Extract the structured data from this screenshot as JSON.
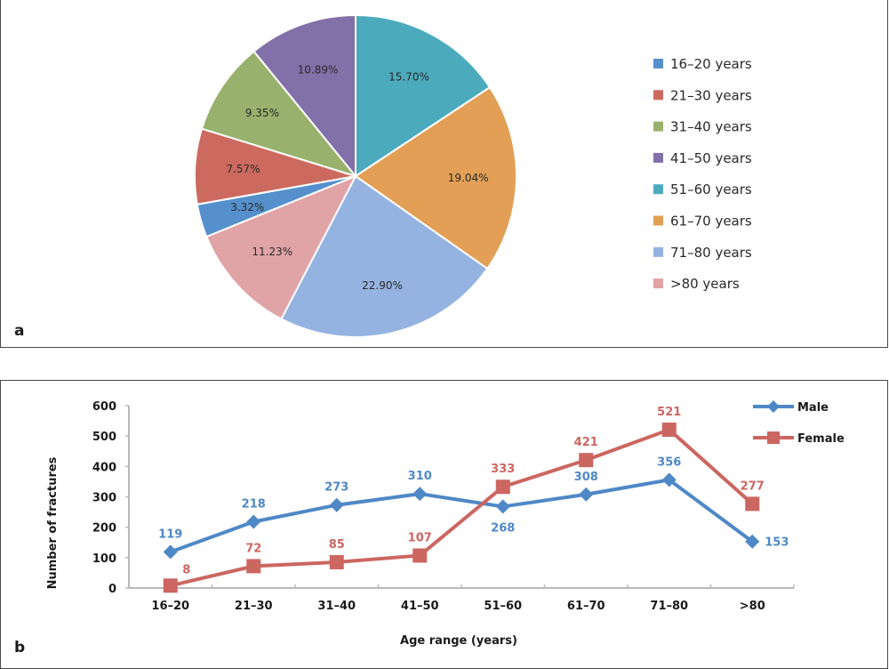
{
  "chart_data": [
    {
      "type": "pie",
      "panel_label": "a",
      "title": "",
      "labels": [
        "16–20 years",
        "21–30 years",
        "31–40 years",
        "41–50 years",
        "51–60 years",
        "61–70 years",
        "71–80 years",
        ">80 years"
      ],
      "values": [
        3.32,
        7.57,
        9.35,
        10.89,
        15.7,
        19.04,
        22.9,
        11.23
      ],
      "value_labels": [
        "3.32%",
        "7.57%",
        "9.35%",
        "10.89%",
        "15.70%",
        "19.04%",
        "22.90%",
        "11.23%"
      ],
      "colors": [
        "#5590cc",
        "#cc6a60",
        "#98b16c",
        "#8270a8",
        "#4babbd",
        "#e29f55",
        "#94b3e0",
        "#e0a3a6"
      ],
      "start_slice_index": 4,
      "legend_position": "right"
    },
    {
      "type": "line",
      "panel_label": "b",
      "title": "",
      "xlabel": "Age range (years)",
      "ylabel": "Number of fractures",
      "categories": [
        "16–20",
        "21–30",
        "31–40",
        "41–50",
        "51–60",
        "61–70",
        "71–80",
        ">80"
      ],
      "ylim": [
        0,
        600
      ],
      "yticks": [
        0,
        100,
        200,
        300,
        400,
        500,
        600
      ],
      "grid": false,
      "legend_position": "top-right",
      "series": [
        {
          "name": "Male",
          "marker": "diamond",
          "color": "#4f88c6",
          "values": [
            119,
            218,
            273,
            310,
            268,
            308,
            356,
            153
          ],
          "label_pos": [
            "above",
            "above",
            "above",
            "above",
            "below",
            "above",
            "above",
            "right"
          ]
        },
        {
          "name": "Female",
          "marker": "square",
          "color": "#cc6660",
          "values": [
            8,
            72,
            85,
            107,
            333,
            421,
            521,
            277
          ],
          "label_pos": [
            "above-right",
            "above",
            "above",
            "above",
            "above",
            "above",
            "above",
            "above"
          ]
        }
      ]
    }
  ]
}
